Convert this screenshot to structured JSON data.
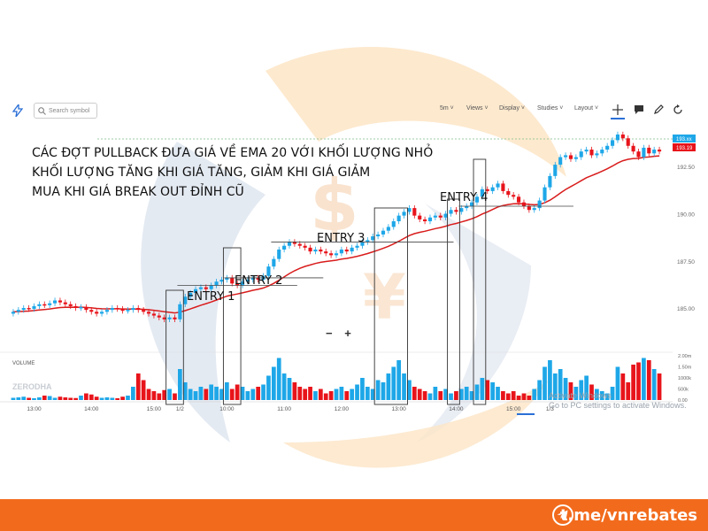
{
  "toolbar": {
    "search_placeholder": "Search symbol",
    "interval": "5m",
    "views": "Views",
    "display": "Display",
    "studies": "Studies",
    "layout": "Layout"
  },
  "annotations": {
    "line1": "CÁC ĐỢT PULLBACK ĐƯA GIÁ VỀ EMA 20 VỚI KHỐI LƯỢNG NHỎ",
    "line2": "KHỐI LƯỢNG TĂNG KHI GIÁ TĂNG, GIẢM KHI GIÁ GIẢM",
    "line3": "MUA KHI GIÁ BREAK OUT ĐỈNH CŨ",
    "entry1": "ENTRY 1",
    "entry2": "ENTRY 2",
    "entry3": "ENTRY 3",
    "entry4": "ENTRY 4"
  },
  "watermark": "ZERODHA",
  "volume_label": "VOLUME",
  "zoom_controls": {
    "minus": "−",
    "plus": "+"
  },
  "windows_notice": {
    "line1": "Activate Windows",
    "line2": "Go to PC settings to activate Windows."
  },
  "footer": {
    "link": "t.me/vnrebates"
  },
  "colors": {
    "up": "#1ea7e8",
    "down": "#e8141b",
    "ema": "#d91c1c",
    "accent": "#f26b1d"
  },
  "chart_data": {
    "type": "candlestick",
    "price_ticks": [
      "192.50",
      "190.00",
      "187.50",
      "185.00"
    ],
    "price_axis_badges": [
      "193.xx",
      "193.19"
    ],
    "volume_ticks": [
      "2.00m",
      "1.50m",
      "1000k",
      "500k",
      "0.00"
    ],
    "x_ticks": [
      "13:00",
      "14:00",
      "15:00",
      "1/2",
      "10:00",
      "11:00",
      "12:00",
      "13:00",
      "14:00",
      "15:00",
      "1/3"
    ],
    "ylim": [
      183.5,
      194.2
    ],
    "series": [
      {
        "name": "EMA 20",
        "type": "line"
      },
      {
        "name": "VOLUME",
        "type": "bar"
      }
    ],
    "closes": [
      184.8,
      184.9,
      185.0,
      184.95,
      185.1,
      185.2,
      185.15,
      185.25,
      185.4,
      185.3,
      185.2,
      185.1,
      185.0,
      185.05,
      184.9,
      184.8,
      184.7,
      184.8,
      184.9,
      185.0,
      184.95,
      184.85,
      184.9,
      185.0,
      184.9,
      184.8,
      184.7,
      184.6,
      184.5,
      184.4,
      184.5,
      184.4,
      185.2,
      185.6,
      185.8,
      186.0,
      186.1,
      186.0,
      186.2,
      186.4,
      186.5,
      186.6,
      186.3,
      186.2,
      186.4,
      186.5,
      186.6,
      186.5,
      186.7,
      187.2,
      187.6,
      188.1,
      188.3,
      188.5,
      188.4,
      188.3,
      188.2,
      188.0,
      188.1,
      188.0,
      187.9,
      187.8,
      187.9,
      188.1,
      188.0,
      188.2,
      188.3,
      188.5,
      188.6,
      188.8,
      188.9,
      189.1,
      189.3,
      189.6,
      189.9,
      190.1,
      190.3,
      189.9,
      189.7,
      189.6,
      189.8,
      189.9,
      189.8,
      190.0,
      190.2,
      190.1,
      190.3,
      190.4,
      190.6,
      190.9,
      191.3,
      191.2,
      191.4,
      191.6,
      191.2,
      191.0,
      190.9,
      190.6,
      190.4,
      190.2,
      190.3,
      190.7,
      191.4,
      192.0,
      192.6,
      193.0,
      193.1,
      192.9,
      193.0,
      193.3,
      193.4,
      193.1,
      193.2,
      193.4,
      193.6,
      193.9,
      194.2,
      194.0,
      193.6,
      193.3,
      193.0,
      193.5,
      193.2,
      193.4,
      193.3
    ],
    "volumes": [
      0.1,
      0.12,
      0.15,
      0.1,
      0.08,
      0.12,
      0.2,
      0.18,
      0.1,
      0.15,
      0.12,
      0.1,
      0.09,
      0.2,
      0.3,
      0.25,
      0.15,
      0.1,
      0.12,
      0.1,
      0.08,
      0.15,
      0.2,
      0.6,
      1.2,
      0.9,
      0.5,
      0.4,
      0.3,
      0.45,
      0.5,
      0.3,
      1.4,
      0.8,
      0.5,
      0.4,
      0.6,
      0.5,
      0.7,
      0.6,
      0.5,
      0.8,
      0.5,
      0.7,
      0.6,
      0.4,
      0.5,
      0.6,
      0.7,
      1.1,
      1.5,
      1.9,
      1.2,
      1.0,
      0.8,
      0.6,
      0.5,
      0.6,
      0.4,
      0.5,
      0.3,
      0.4,
      0.5,
      0.6,
      0.4,
      0.5,
      0.7,
      1.0,
      0.6,
      0.5,
      0.9,
      0.8,
      1.2,
      1.5,
      1.8,
      1.2,
      0.9,
      0.6,
      0.5,
      0.4,
      0.3,
      0.6,
      0.4,
      0.5,
      0.3,
      0.4,
      0.5,
      0.6,
      0.4,
      0.7,
      1.0,
      0.9,
      0.8,
      0.6,
      0.4,
      0.3,
      0.4,
      0.2,
      0.3,
      0.2,
      0.5,
      0.9,
      1.5,
      1.8,
      1.2,
      1.4,
      1.0,
      0.8,
      0.6,
      0.9,
      1.1,
      0.7,
      0.5,
      0.4,
      0.3,
      0.6,
      1.5,
      1.2,
      0.8,
      1.6,
      1.7,
      1.9,
      1.8,
      1.4,
      1.2
    ],
    "entries": [
      {
        "label": "ENTRY 1",
        "index": 32
      },
      {
        "label": "ENTRY 2",
        "index": 41
      },
      {
        "label": "ENTRY 3",
        "index": 50
      },
      {
        "label": "ENTRY 4",
        "index": 86
      }
    ]
  }
}
